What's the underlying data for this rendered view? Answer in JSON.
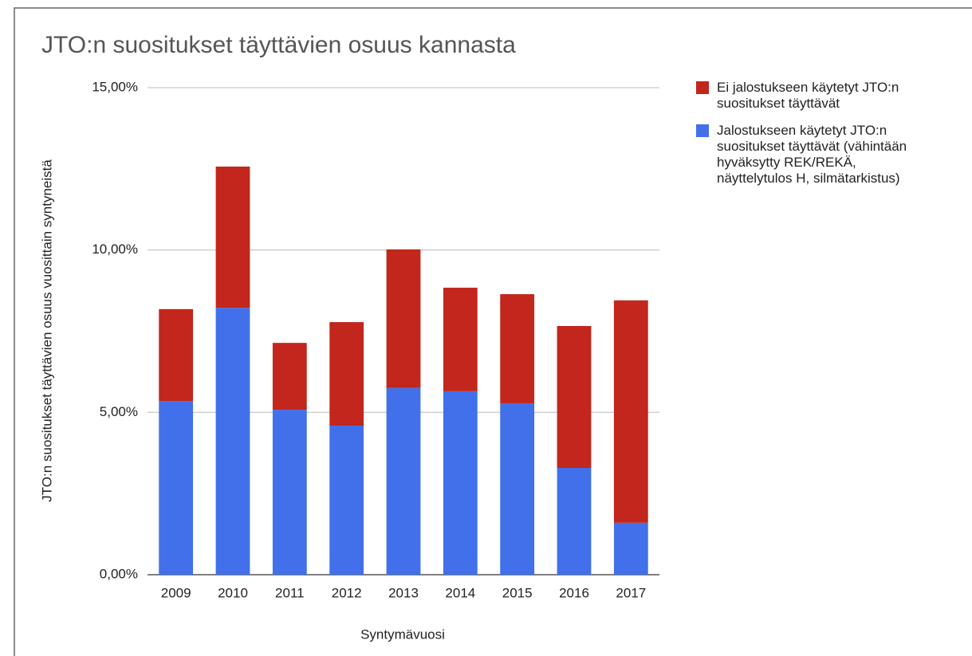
{
  "chart_data": {
    "type": "stacked_bar",
    "title": "JTO:n suositukset täyttävien osuus kannasta",
    "x_label": "Syntymävuosi",
    "y_label": "JTO:n suositukset täyttävien osuus vuosittain syntyneistä",
    "categories": [
      "2009",
      "2010",
      "2011",
      "2012",
      "2013",
      "2014",
      "2015",
      "2016",
      "2017"
    ],
    "series": [
      {
        "name": "Ei jalostukseen käytetyt JTO:n suositukset täyttävät",
        "color": "#c2261c",
        "values": [
          2.83,
          4.35,
          2.06,
          3.19,
          4.27,
          3.19,
          3.36,
          4.37,
          6.85
        ]
      },
      {
        "name": "Jalostukseen käytetyt JTO:n suositukset täyttävät (vähintään hyväksytty REK/REKÄ, näyttelytulos H, silmätarkistus)",
        "color": "#4170ea",
        "values": [
          5.35,
          8.22,
          5.08,
          4.59,
          5.75,
          5.65,
          5.28,
          3.29,
          1.6
        ]
      }
    ],
    "ylim": [
      0,
      15
    ],
    "yticks": [
      {
        "value": 0,
        "label": "0,00%"
      },
      {
        "value": 5,
        "label": "5,00%"
      },
      {
        "value": 10,
        "label": "10,00%"
      },
      {
        "value": 15,
        "label": "15,00%"
      }
    ],
    "grid": true,
    "legend": "right"
  }
}
